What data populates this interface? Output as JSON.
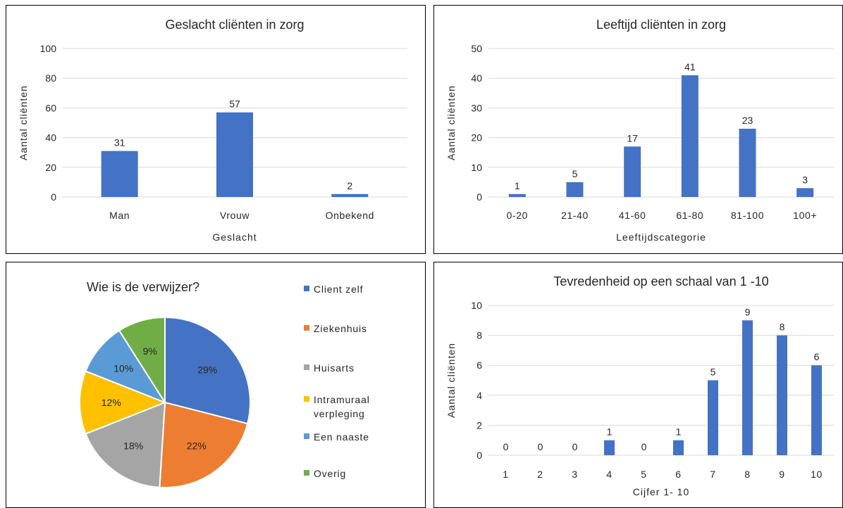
{
  "chart_data": [
    {
      "type": "bar",
      "title": "Geslacht cliënten in zorg",
      "xlabel": "Geslacht",
      "ylabel": "Aantal cliënten",
      "categories": [
        "Man",
        "Vrouw",
        "Onbekend"
      ],
      "values": [
        31,
        57,
        2
      ],
      "ylim": [
        0,
        100
      ],
      "yticks": [
        0,
        20,
        40,
        60,
        80,
        100
      ],
      "grid": true,
      "color": "#4472C4"
    },
    {
      "type": "bar",
      "title": "Leeftijd cliënten in zorg",
      "xlabel": "Leeftijdscategorie",
      "ylabel": "Aantal cliënten",
      "categories": [
        "0-20",
        "21-40",
        "41-60",
        "61-80",
        "81-100",
        "100+"
      ],
      "values": [
        1,
        5,
        17,
        41,
        23,
        3
      ],
      "ylim": [
        0,
        50
      ],
      "yticks": [
        0,
        10,
        20,
        30,
        40,
        50
      ],
      "grid": true,
      "color": "#4472C4"
    },
    {
      "type": "pie",
      "title": "Wie is de verwijzer?",
      "legend_position": "right",
      "slices": [
        {
          "label": "Client zelf",
          "value": 29,
          "display": "29%",
          "color": "#4472C4"
        },
        {
          "label": "Ziekenhuis",
          "value": 22,
          "display": "22%",
          "color": "#ED7D31"
        },
        {
          "label": "Huisarts",
          "value": 18,
          "display": "18%",
          "color": "#A5A5A5"
        },
        {
          "label": "Intramuraal verpleging",
          "value": 12,
          "display": "12%",
          "color": "#FFC000"
        },
        {
          "label": "Een naaste",
          "value": 10,
          "display": "10%",
          "color": "#5B9BD5"
        },
        {
          "label": "Overig",
          "value": 9,
          "display": "9%",
          "color": "#70AD47"
        }
      ]
    },
    {
      "type": "bar",
      "title": "Tevredenheid op een schaal van 1 -10",
      "xlabel": "Cijfer 1- 10",
      "ylabel": "Aantal cliënten",
      "categories": [
        "1",
        "2",
        "3",
        "4",
        "5",
        "6",
        "7",
        "8",
        "9",
        "10"
      ],
      "values": [
        0,
        0,
        0,
        1,
        0,
        1,
        5,
        9,
        8,
        6
      ],
      "ylim": [
        0,
        10
      ],
      "yticks": [
        0,
        2,
        4,
        6,
        8,
        10
      ],
      "grid": true,
      "color": "#4472C4"
    }
  ]
}
